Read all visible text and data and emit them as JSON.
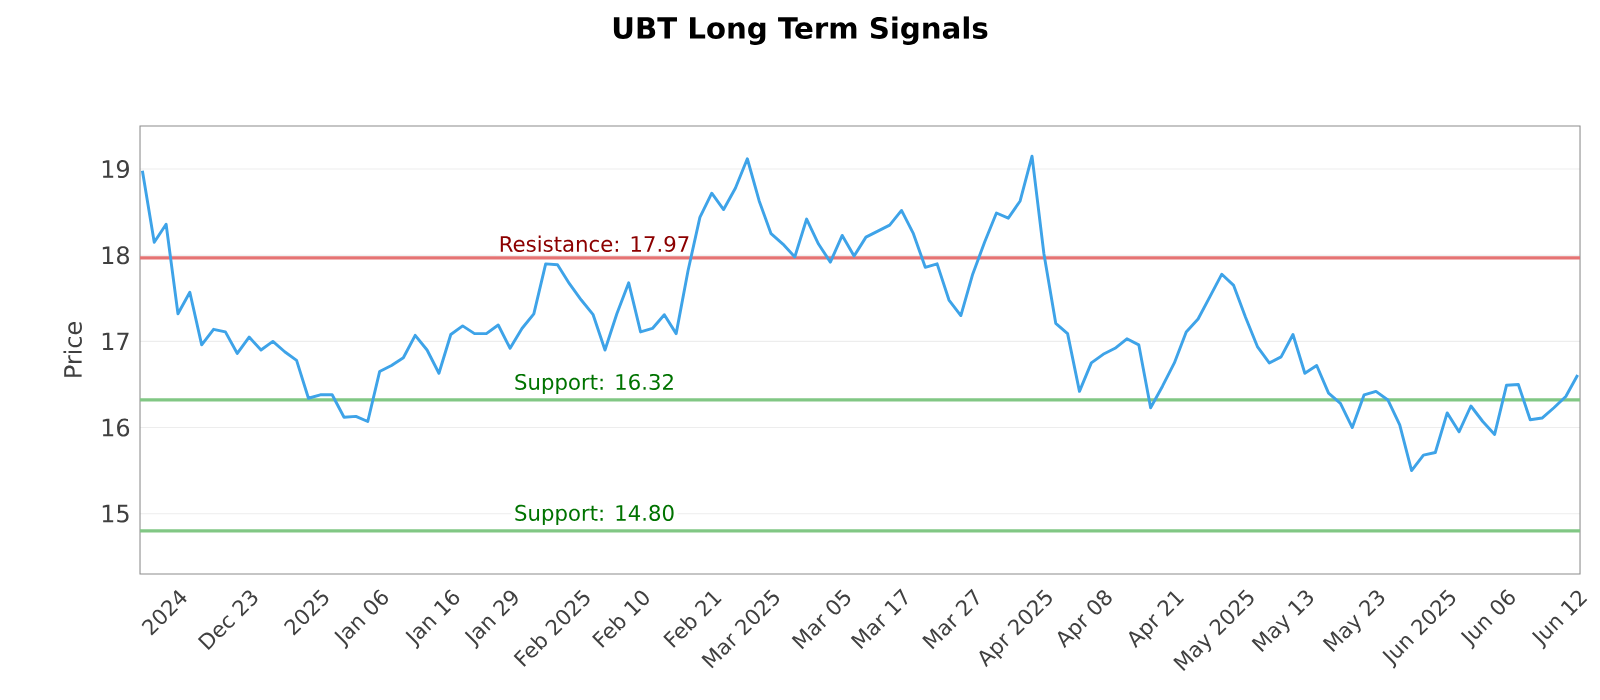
{
  "chart_data": {
    "type": "line",
    "title": "UBT Long Term Signals",
    "ylabel": "Price",
    "categories": [
      null,
      null,
      null,
      "2024",
      null,
      null,
      null,
      null,
      null,
      "Dec 23",
      null,
      null,
      null,
      null,
      null,
      "2025",
      null,
      null,
      null,
      null,
      "Jan 06",
      null,
      null,
      null,
      null,
      null,
      "Jan 16",
      null,
      null,
      null,
      null,
      "Jan 29",
      null,
      null,
      null,
      null,
      null,
      "Feb 2025",
      null,
      null,
      null,
      null,
      "Feb 10",
      null,
      null,
      null,
      null,
      null,
      "Feb 21",
      null,
      null,
      null,
      null,
      "Mar 2025",
      null,
      null,
      null,
      null,
      null,
      "Mar 05",
      null,
      null,
      null,
      null,
      "Mar 17",
      null,
      null,
      null,
      null,
      null,
      "Mar 27",
      null,
      null,
      null,
      null,
      null,
      "Apr 2025",
      null,
      null,
      null,
      null,
      "Apr 08",
      null,
      null,
      null,
      null,
      null,
      "Apr 21",
      null,
      null,
      null,
      null,
      null,
      "May 2025",
      null,
      null,
      null,
      null,
      "May 13",
      null,
      null,
      null,
      null,
      null,
      "May 23",
      null,
      null,
      null,
      null,
      null,
      "Jun 2025",
      null,
      null,
      null,
      null,
      "Jun 06",
      null,
      null,
      null,
      null,
      null,
      "Jun 12"
    ],
    "series": [
      {
        "color": "#3ea3e8",
        "values": [
          18.98,
          18.15,
          18.36,
          17.32,
          17.57,
          16.96,
          17.14,
          17.11,
          16.86,
          17.05,
          16.9,
          17.0,
          16.88,
          16.78,
          16.34,
          16.38,
          16.38,
          16.12,
          16.13,
          16.07,
          16.65,
          16.72,
          16.81,
          17.07,
          16.9,
          16.63,
          17.08,
          17.18,
          17.09,
          17.09,
          17.19,
          16.92,
          17.15,
          17.32,
          17.9,
          17.89,
          17.67,
          17.48,
          17.31,
          16.9,
          17.32,
          17.68,
          17.11,
          17.15,
          17.31,
          17.09,
          17.82,
          18.44,
          18.72,
          18.53,
          18.78,
          19.12,
          18.63,
          18.25,
          18.13,
          17.98,
          18.42,
          18.13,
          17.92,
          18.23,
          17.99,
          18.21,
          18.28,
          18.35,
          18.52,
          18.25,
          17.86,
          17.9,
          17.48,
          17.3,
          17.78,
          18.15,
          18.49,
          18.43,
          18.63,
          19.15,
          18.02,
          17.21,
          17.09,
          16.42,
          16.75,
          16.85,
          16.92,
          17.03,
          16.96,
          16.23,
          16.48,
          16.75,
          17.11,
          17.26,
          17.52,
          17.78,
          17.65,
          17.28,
          16.94,
          16.75,
          16.82,
          17.08,
          16.63,
          16.72,
          16.4,
          16.28,
          16.0,
          16.38,
          16.42,
          16.32,
          16.03,
          15.5,
          15.68,
          15.71,
          16.17,
          15.95,
          16.25,
          16.07,
          15.92,
          16.49,
          16.5,
          16.09,
          16.11,
          16.23,
          16.36,
          16.61
        ]
      }
    ],
    "ylim": [
      14.3,
      19.5
    ],
    "yticks": [
      15,
      16,
      17,
      18,
      19
    ],
    "grid": "y",
    "marker": "none",
    "line_style": "solid",
    "ref_lines": [
      {
        "axis": "y",
        "value": 17.97,
        "label": "Resistance: 17.97",
        "color": "#e57373"
      },
      {
        "axis": "y",
        "value": 16.32,
        "label": "Support: 16.32",
        "color": "#81c784"
      },
      {
        "axis": "y",
        "value": 14.8,
        "label": "Support: 14.80",
        "color": "#81c784"
      }
    ]
  }
}
